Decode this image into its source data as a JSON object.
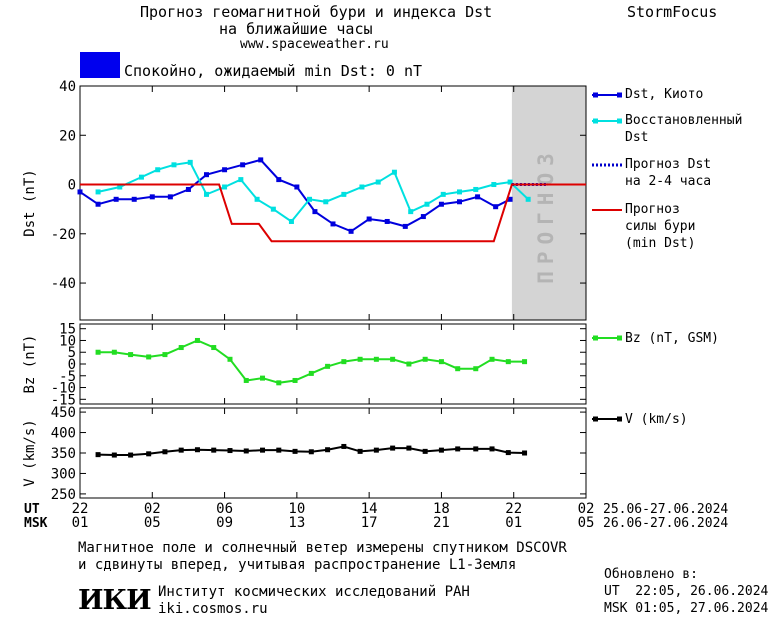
{
  "header": {
    "title_line1": "Прогноз геомагнитной бури и индекса Dst",
    "title_line2": "на ближайшие часы",
    "site": "www.spaceweather.ru",
    "brand": "StormFocus",
    "status_color": "#0000ee",
    "status_text": "Спокойно, ожидаемый min Dst: 0 nT"
  },
  "legend": {
    "dst_kyoto": "Dst, Киото",
    "restored_1": "Восстановленный",
    "restored_2": "Dst",
    "fc_dst_1": "Прогноз Dst",
    "fc_dst_2": "на 2-4 часа",
    "storm_1": "Прогноз",
    "storm_2": "силы бури",
    "storm_3": "(min Dst)",
    "bz": "Bz (nT, GSM)",
    "v": "V (km/s)"
  },
  "forecast_band_label": "ПРОГНОЗ",
  "footer": {
    "ut_label": "UT",
    "msk_label": "MSK",
    "ut_range": "25.06-27.06.2024",
    "msk_range": "26.06-27.06.2024",
    "note_line1": "Магнитное поле и солнечный ветер измерены спутником DSCOVR",
    "note_line2": "и сдвинуты вперед, учитывая распространение L1-Земля",
    "updated_label": "Обновлено в:",
    "updated_ut": "UT  22:05, 26.06.2024",
    "updated_msk": "MSK 01:05, 27.06.2024",
    "org_logo": "ИКИ",
    "org_name": "Институт космических исследований РАН",
    "org_site": "iki.cosmos.ru"
  },
  "chart_data": {
    "type": "line",
    "x_axis": {
      "ut_ticks": [
        "22",
        "02",
        "06",
        "10",
        "14",
        "18",
        "22",
        "02"
      ],
      "msk_ticks": [
        "01",
        "05",
        "09",
        "13",
        "17",
        "21",
        "01",
        "05"
      ],
      "xlim_hours": [
        22,
        50
      ],
      "forecast_from": 45.9
    },
    "panels": [
      {
        "id": "dst",
        "ylabel": "Dst (nT)",
        "ylim": [
          -55,
          40
        ],
        "yticks": [
          40,
          20,
          0,
          -20,
          -40
        ],
        "series": [
          {
            "name": "Dst, Киото",
            "color": "#0000dd",
            "style": "line-marker",
            "x": [
              22.0,
              23.0,
              24.0,
              25.0,
              26.0,
              27.0,
              28.0,
              29.0,
              30.0,
              31.0,
              32.0,
              33.0,
              34.0,
              35.0,
              36.0,
              37.0,
              38.0,
              39.0,
              40.0,
              41.0,
              42.0,
              43.0,
              44.0,
              45.0,
              45.8
            ],
            "y": [
              -3,
              -8,
              -6,
              -6,
              -5,
              -5,
              -2,
              4,
              6,
              8,
              10,
              2,
              -1,
              -11,
              -16,
              -19,
              -14,
              -15,
              -17,
              -13,
              -8,
              -7,
              -5,
              -9,
              -6
            ]
          },
          {
            "name": "Восстановленный Dst",
            "color": "#00e0e0",
            "style": "line-marker",
            "x": [
              23.0,
              24.2,
              25.4,
              26.3,
              27.2,
              28.1,
              29.0,
              30.0,
              30.9,
              31.8,
              32.7,
              33.7,
              34.7,
              35.6,
              36.6,
              37.6,
              38.5,
              39.4,
              40.3,
              41.2,
              42.1,
              43.0,
              43.9,
              44.9,
              45.8,
              46.8
            ],
            "y": [
              -3,
              -1,
              3,
              6,
              8,
              9,
              -4,
              -1,
              2,
              -6,
              -10,
              -15,
              -6,
              -7,
              -4,
              -1,
              1,
              5,
              -11,
              -8,
              -4,
              -3,
              -2,
              0,
              1,
              -6
            ]
          },
          {
            "name": "Прогноз Dst на 2-4 часа",
            "color": "#0000cc",
            "style": "dotted",
            "x": [
              45.9,
              46.4,
              46.9,
              47.4,
              47.9
            ],
            "y": [
              0,
              0,
              0,
              0,
              0
            ]
          },
          {
            "name": "Прогноз силы бури (min Dst)",
            "color": "#dd0000",
            "style": "step",
            "x": [
              22.0,
              22.5,
              29.7,
              30.4,
              31.9,
              32.6,
              44.9,
              45.9,
              50.0
            ],
            "y": [
              0,
              0,
              0,
              -16,
              -16,
              -23,
              -23,
              0,
              0
            ]
          }
        ]
      },
      {
        "id": "bz",
        "ylabel": "Bz (nT)",
        "ylim": [
          -17,
          17
        ],
        "yticks": [
          15,
          10,
          5,
          0,
          -5,
          -10,
          -15
        ],
        "series": [
          {
            "name": "Bz (nT, GSM)",
            "color": "#22dd22",
            "style": "line-marker",
            "x": [
              23.0,
              23.9,
              24.8,
              25.8,
              26.7,
              27.6,
              28.5,
              29.4,
              30.3,
              31.2,
              32.1,
              33.0,
              33.9,
              34.8,
              35.7,
              36.6,
              37.5,
              38.4,
              39.3,
              40.2,
              41.1,
              42.0,
              42.9,
              43.9,
              44.8,
              45.7,
              46.6
            ],
            "y": [
              5,
              5,
              4,
              3,
              4,
              7,
              10,
              7,
              2,
              -7,
              -6,
              -8,
              -7,
              -4,
              -1,
              1,
              2,
              2,
              2,
              0,
              2,
              1,
              -2,
              -2,
              2,
              1,
              1
            ]
          }
        ]
      },
      {
        "id": "v",
        "ylabel": "V (km/s)",
        "ylim": [
          240,
          460
        ],
        "yticks": [
          450,
          400,
          350,
          300,
          250
        ],
        "series": [
          {
            "name": "V (km/s)",
            "color": "#000000",
            "style": "line-marker",
            "x": [
              23.0,
              23.9,
              24.8,
              25.8,
              26.7,
              27.6,
              28.5,
              29.4,
              30.3,
              31.2,
              32.1,
              33.0,
              33.9,
              34.8,
              35.7,
              36.6,
              37.5,
              38.4,
              39.3,
              40.2,
              41.1,
              42.0,
              42.9,
              43.9,
              44.8,
              45.7,
              46.6
            ],
            "y": [
              346,
              345,
              345,
              348,
              353,
              357,
              358,
              357,
              356,
              355,
              357,
              357,
              354,
              353,
              358,
              366,
              354,
              357,
              362,
              362,
              354,
              357,
              360,
              360,
              360,
              351,
              350
            ]
          }
        ]
      }
    ]
  }
}
